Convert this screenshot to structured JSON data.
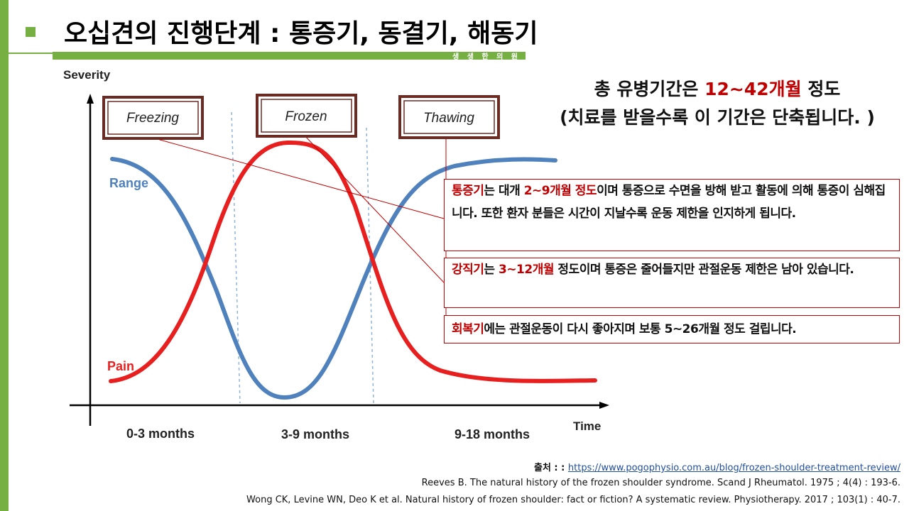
{
  "header": {
    "title": "오십견의 진행단계 : 통증기, 동결기, 해동기",
    "brand": "생 생 한 의 원"
  },
  "colors": {
    "accent_green": "#76b043",
    "highlight_red": "#c00000",
    "range_blue": "#4f81bd",
    "pain_red": "#e81f1f",
    "frame_brown": "#6b2a22"
  },
  "diagram": {
    "y_label": "Severity",
    "x_label": "Time",
    "phases": [
      "Freezing",
      "Frozen",
      "Thawing"
    ],
    "periods": [
      "0-3 months",
      "3-9 months",
      "9-18 months"
    ],
    "curves": {
      "range": "Range",
      "pain": "Pain"
    }
  },
  "headline": {
    "line1_before": "총 유병기간은 ",
    "line1_highlight": "12~42개월",
    "line1_after": " 정도",
    "line2": "(치료를 받을수록 이 기간은 단축됩니다. )"
  },
  "callouts": [
    {
      "term": "통증기",
      "after_term": "는 대개 ",
      "duration": "2~9개월 정도",
      "rest": "이며 통증으로 수면을 방해 받고 활동에 의해 통증이 심해집니다. 또한 환자 분들은 시간이 지날수록 운동 제한을 인지하게 됩니다."
    },
    {
      "term": "강직기",
      "after_term": "는 ",
      "duration": "3~12개월",
      "rest": " 정도이며 통증은 줄어들지만 관절운동 제한은 남아 있습니다."
    },
    {
      "term": "회복기",
      "rest": "에는 관절운동이 다시 좋아지며 보통 5~26개월 정도 걸립니다."
    }
  ],
  "references": {
    "source_label": "출처 : : ",
    "source_url": "https://www.pogophysio.com.au/blog/frozen-shoulder-treatment-review/",
    "ref1": "Reeves B. The natural history of the frozen shoulder syndrome. Scand J Rheumatol. 1975 ; 4(4) : 193-6.",
    "ref2": "Wong CK, Levine WN, Deo K et al. Natural history of frozen shoulder: fact or fiction? A systematic review. Physiotherapy. 2017 ; 103(1) : 40-7."
  }
}
